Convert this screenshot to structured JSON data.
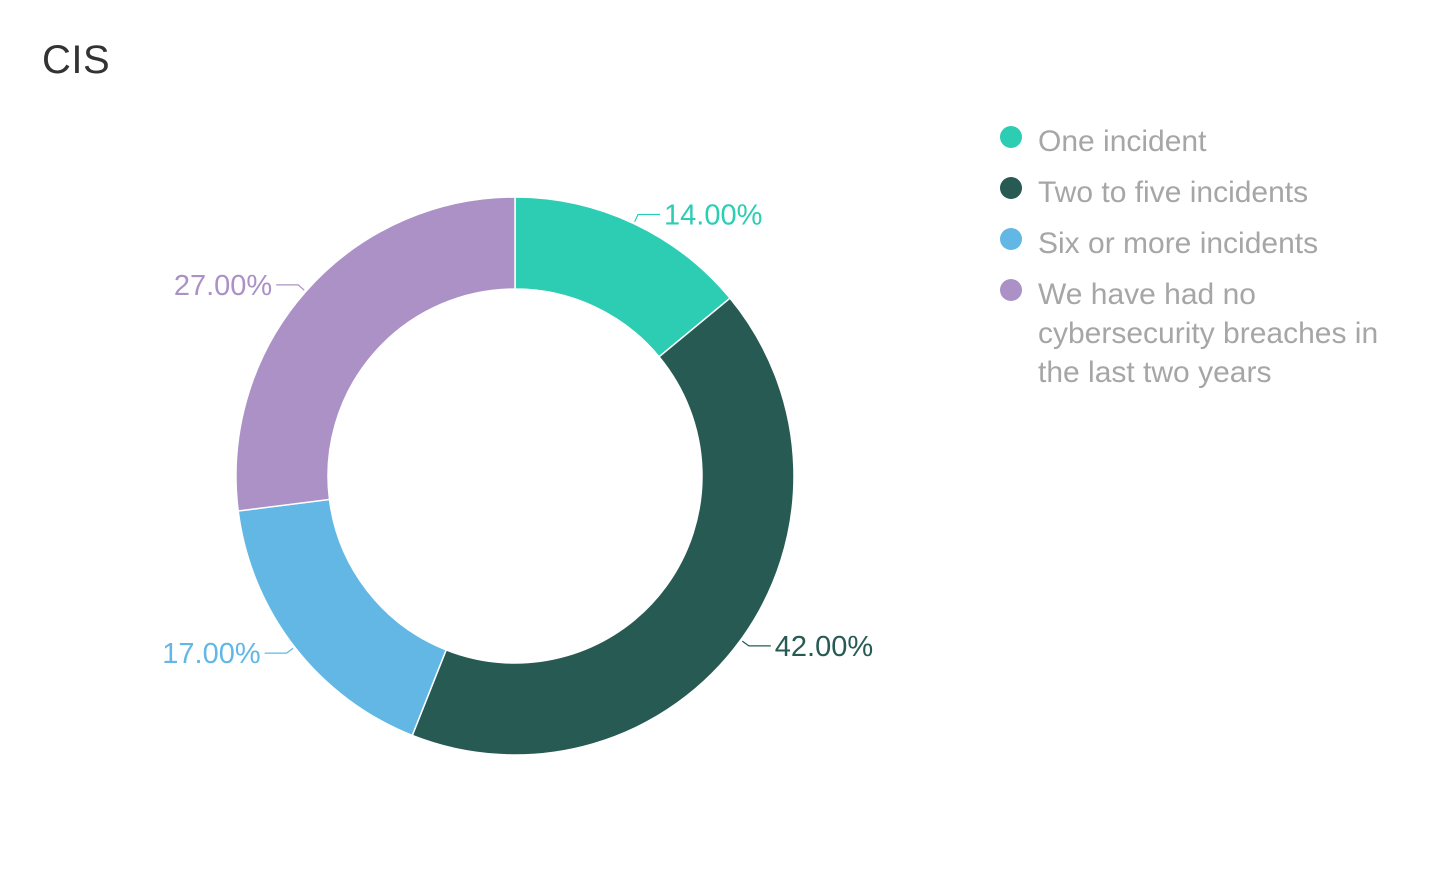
{
  "chart_data": {
    "type": "pie",
    "title": "CIS",
    "donut": true,
    "legend_position": "right",
    "categories": [
      "One incident",
      "Two to five incidents",
      "Six or more incidents",
      "We have had no cybersecurity breaches in the last two years"
    ],
    "values": [
      14.0,
      42.0,
      17.0,
      27.0
    ],
    "data_labels": [
      "14.00%",
      "42.00%",
      "17.00%",
      "27.00%"
    ],
    "colors": [
      "#2ccdb2",
      "#265a53",
      "#62b7e4",
      "#ab91c6"
    ]
  }
}
